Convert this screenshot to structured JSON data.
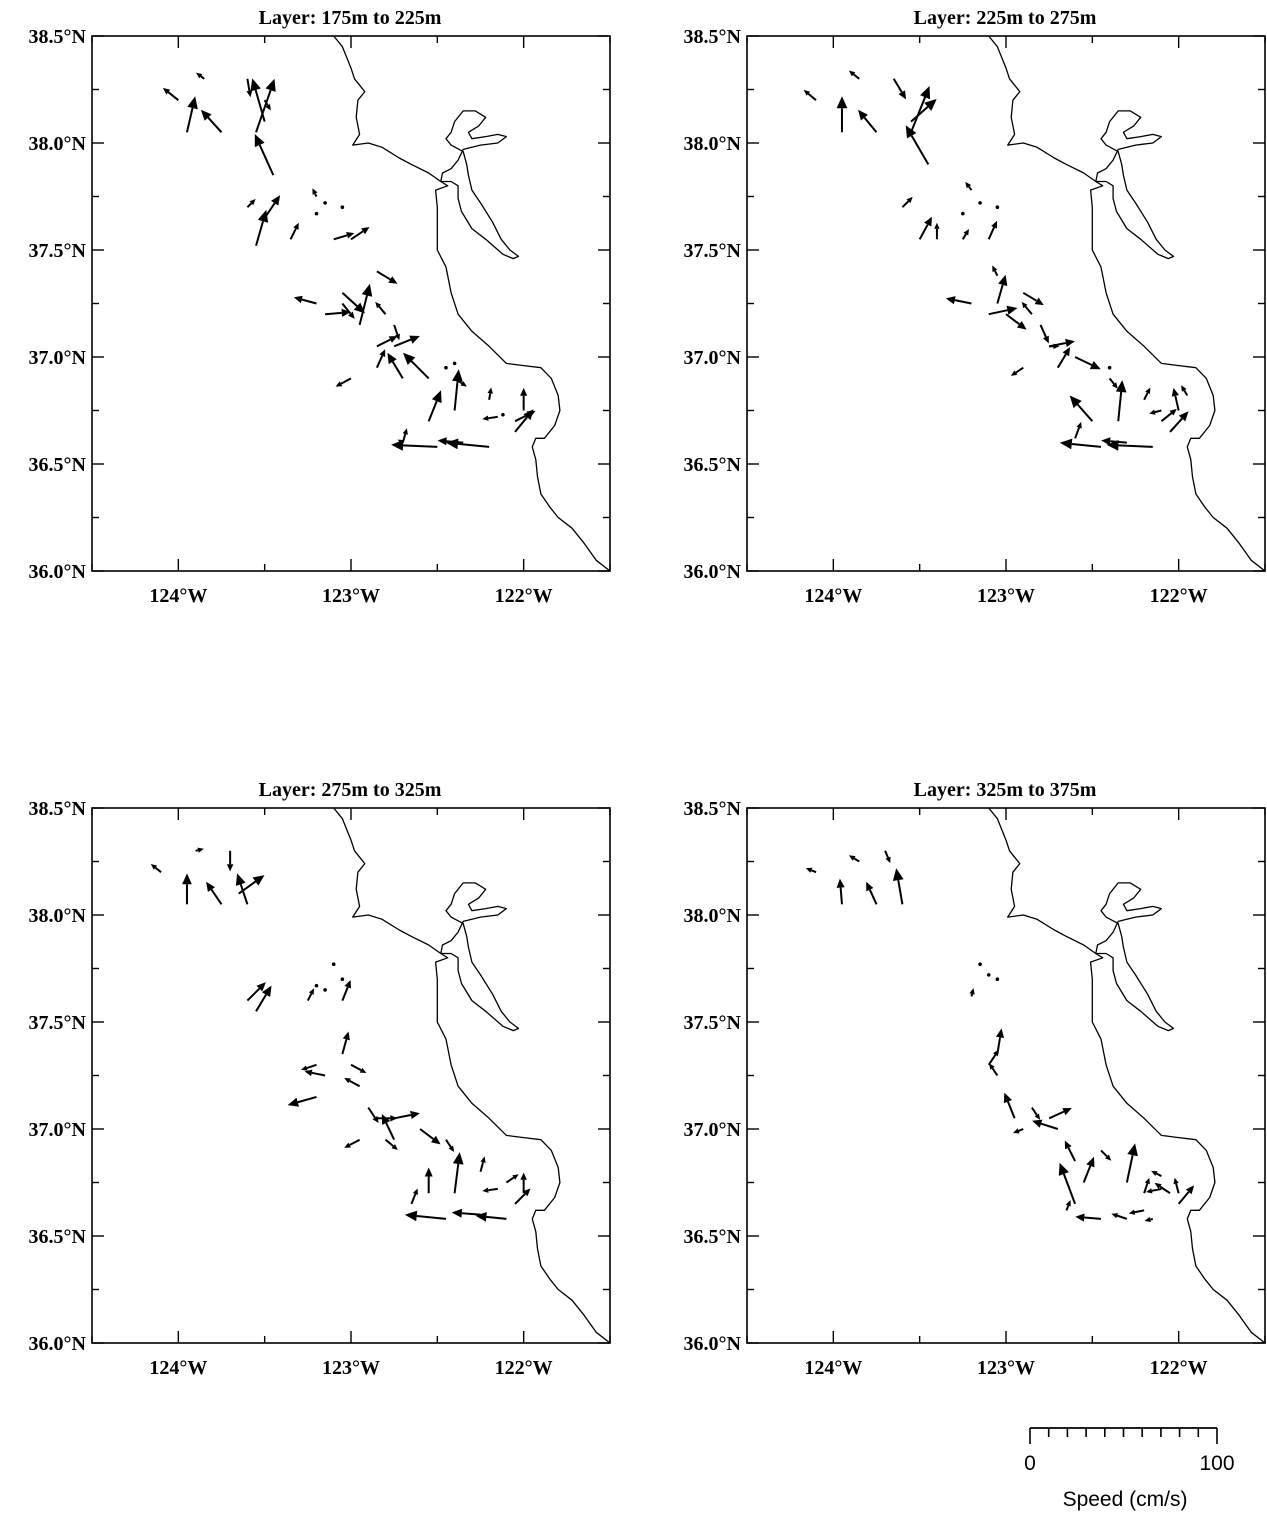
{
  "figure": {
    "panels": [
      {
        "title": "Layer:  175m to 225m"
      },
      {
        "title": "Layer:  225m to 275m"
      },
      {
        "title": "Layer:  275m to 325m"
      },
      {
        "title": "Layer:  325m to 375m"
      }
    ],
    "lat_labels": [
      "36.0°N",
      "36.5°N",
      "37.0°N",
      "37.5°N",
      "38.0°N",
      "38.5°N"
    ],
    "lon_labels": [
      "124°W",
      "123°W",
      "122°W"
    ],
    "scale": {
      "min_label": "0",
      "max_label": "100",
      "title": "Speed (cm/s)"
    }
  },
  "chart_data": [
    {
      "type": "vector-field map",
      "title": "Layer:  175m to 225m",
      "x_range_lon": [
        -124.5,
        -121.5
      ],
      "y_range_lat": [
        36.0,
        38.5
      ],
      "speed_scale_cm_s": 100,
      "vectors": [
        [
          -124.0,
          38.2,
          -15,
          12
        ],
        [
          -123.95,
          38.05,
          8,
          35
        ],
        [
          -123.85,
          38.3,
          -8,
          6
        ],
        [
          -123.75,
          38.05,
          -20,
          22
        ],
        [
          -123.6,
          38.3,
          3,
          -18
        ],
        [
          -123.5,
          38.1,
          -12,
          42
        ],
        [
          -123.45,
          37.85,
          -18,
          40
        ],
        [
          -123.55,
          38.05,
          18,
          52
        ],
        [
          -123.5,
          38.2,
          6,
          -10
        ],
        [
          -123.5,
          37.65,
          15,
          22
        ],
        [
          -123.6,
          37.7,
          8,
          8
        ],
        [
          -123.55,
          37.52,
          10,
          35
        ],
        [
          -123.35,
          37.55,
          8,
          16
        ],
        [
          -123.2,
          37.75,
          -4,
          8
        ],
        [
          -123.1,
          37.55,
          20,
          6
        ],
        [
          -123.0,
          37.55,
          18,
          12
        ],
        [
          -123.2,
          37.25,
          -22,
          6
        ],
        [
          -123.05,
          37.25,
          12,
          -15
        ],
        [
          -123.05,
          37.3,
          22,
          -20
        ],
        [
          -122.95,
          37.15,
          10,
          40
        ],
        [
          -122.85,
          37.4,
          20,
          -12
        ],
        [
          -122.8,
          37.2,
          -10,
          12
        ],
        [
          -122.75,
          37.15,
          5,
          -15
        ],
        [
          -123.15,
          37.2,
          25,
          2
        ],
        [
          -123.0,
          36.9,
          -15,
          -8
        ],
        [
          -122.85,
          36.95,
          8,
          18
        ],
        [
          -122.7,
          36.9,
          -15,
          25
        ],
        [
          -122.85,
          37.05,
          20,
          10
        ],
        [
          -122.75,
          37.05,
          25,
          10
        ],
        [
          -122.55,
          36.9,
          -25,
          25
        ],
        [
          -122.4,
          36.9,
          12,
          -8
        ],
        [
          -122.4,
          36.75,
          4,
          40
        ],
        [
          -122.55,
          36.7,
          12,
          30
        ],
        [
          -122.2,
          36.8,
          2,
          12
        ],
        [
          -122.05,
          36.65,
          18,
          22
        ],
        [
          -122.0,
          36.75,
          0,
          22
        ],
        [
          -122.05,
          36.7,
          20,
          10
        ],
        [
          -122.15,
          36.72,
          -15,
          -2
        ],
        [
          -122.7,
          36.6,
          4,
          14
        ],
        [
          -122.5,
          36.58,
          -45,
          2
        ],
        [
          -122.35,
          36.6,
          -25,
          2
        ],
        [
          -122.2,
          36.58,
          -42,
          4
        ],
        [
          -122.7,
          36.6,
          -5,
          3
        ]
      ],
      "dots": [
        [
          -123.2,
          37.67
        ],
        [
          -123.15,
          37.72
        ],
        [
          -123.05,
          37.7
        ],
        [
          -122.4,
          36.97
        ],
        [
          -122.45,
          36.95
        ],
        [
          -122.12,
          36.73
        ]
      ]
    },
    {
      "type": "vector-field map",
      "title": "Layer:  225m to 275m",
      "x_range_lon": [
        -124.5,
        -121.5
      ],
      "y_range_lat": [
        36.0,
        38.5
      ],
      "speed_scale_cm_s": 100,
      "vectors": [
        [
          -124.1,
          38.2,
          -12,
          10
        ],
        [
          -123.95,
          38.05,
          0,
          35
        ],
        [
          -123.85,
          38.3,
          -10,
          8
        ],
        [
          -123.75,
          38.05,
          -18,
          22
        ],
        [
          -123.65,
          38.3,
          12,
          -20
        ],
        [
          -123.55,
          38.1,
          25,
          22
        ],
        [
          -123.45,
          37.9,
          -22,
          38
        ],
        [
          -123.55,
          38.05,
          18,
          45
        ],
        [
          -123.5,
          37.55,
          12,
          22
        ],
        [
          -123.4,
          37.55,
          0,
          16
        ],
        [
          -123.6,
          37.7,
          10,
          10
        ],
        [
          -123.25,
          37.55,
          6,
          10
        ],
        [
          -123.1,
          37.55,
          8,
          18
        ],
        [
          -123.2,
          37.78,
          -6,
          8
        ],
        [
          -123.05,
          37.38,
          -5,
          10
        ],
        [
          -123.2,
          37.25,
          -25,
          5
        ],
        [
          -123.05,
          37.25,
          8,
          28
        ],
        [
          -122.9,
          37.3,
          20,
          -12
        ],
        [
          -123.1,
          37.2,
          28,
          6
        ],
        [
          -123.0,
          37.2,
          20,
          -15
        ],
        [
          -122.85,
          37.2,
          -10,
          12
        ],
        [
          -122.8,
          37.15,
          8,
          -18
        ],
        [
          -122.75,
          37.05,
          10,
          0
        ],
        [
          -122.9,
          36.95,
          -12,
          -8
        ],
        [
          -122.7,
          36.95,
          12,
          20
        ],
        [
          -122.6,
          37.0,
          25,
          -12
        ],
        [
          -122.75,
          37.05,
          25,
          5
        ],
        [
          -122.5,
          36.7,
          -22,
          25
        ],
        [
          -122.35,
          36.7,
          4,
          40
        ],
        [
          -122.4,
          36.9,
          8,
          -10
        ],
        [
          -122.2,
          36.8,
          6,
          12
        ],
        [
          -122.1,
          36.7,
          15,
          12
        ],
        [
          -122.0,
          36.75,
          -5,
          22
        ],
        [
          -122.05,
          36.65,
          18,
          20
        ],
        [
          -121.95,
          36.82,
          -6,
          10
        ],
        [
          -122.1,
          36.75,
          -12,
          -3
        ],
        [
          -122.6,
          36.62,
          6,
          16
        ],
        [
          -122.45,
          36.58,
          -40,
          4
        ],
        [
          -122.3,
          36.6,
          -25,
          2
        ],
        [
          -122.15,
          36.58,
          -45,
          2
        ]
      ],
      "dots": [
        [
          -123.25,
          37.67
        ],
        [
          -123.15,
          37.72
        ],
        [
          -123.05,
          37.7
        ],
        [
          -122.4,
          36.95
        ]
      ]
    },
    {
      "type": "vector-field map",
      "title": "Layer:  275m to 325m",
      "x_range_lon": [
        -124.5,
        -121.5
      ],
      "y_range_lat": [
        36.0,
        38.5
      ],
      "speed_scale_cm_s": 100,
      "vectors": [
        [
          -124.1,
          38.2,
          -10,
          8
        ],
        [
          -123.95,
          38.05,
          0,
          30
        ],
        [
          -123.9,
          38.3,
          8,
          2
        ],
        [
          -123.75,
          38.05,
          -15,
          22
        ],
        [
          -123.7,
          38.3,
          0,
          -20
        ],
        [
          -123.6,
          38.05,
          -10,
          30
        ],
        [
          -123.65,
          38.1,
          25,
          18
        ],
        [
          -123.55,
          37.55,
          15,
          25
        ],
        [
          -123.6,
          37.6,
          18,
          18
        ],
        [
          -123.25,
          37.6,
          6,
          12
        ],
        [
          -123.05,
          37.6,
          8,
          20
        ],
        [
          -123.05,
          37.35,
          6,
          22
        ],
        [
          -123.2,
          37.3,
          -15,
          -5
        ],
        [
          -123.15,
          37.25,
          -20,
          4
        ],
        [
          -123.2,
          37.15,
          -28,
          -8
        ],
        [
          -123.0,
          37.3,
          15,
          -8
        ],
        [
          -122.95,
          37.2,
          -15,
          8
        ],
        [
          -122.9,
          37.1,
          10,
          -15
        ],
        [
          -122.85,
          37.05,
          20,
          0
        ],
        [
          -122.75,
          37.05,
          25,
          5
        ],
        [
          -122.75,
          36.95,
          -12,
          25
        ],
        [
          -122.6,
          37.0,
          20,
          -15
        ],
        [
          -122.95,
          36.95,
          -15,
          -8
        ],
        [
          -122.8,
          36.95,
          12,
          -10
        ],
        [
          -122.55,
          36.7,
          0,
          25
        ],
        [
          -122.4,
          36.7,
          5,
          40
        ],
        [
          -122.45,
          36.95,
          8,
          -12
        ],
        [
          -122.25,
          36.8,
          4,
          15
        ],
        [
          -122.1,
          36.75,
          12,
          8
        ],
        [
          -122.0,
          36.7,
          0,
          20
        ],
        [
          -122.15,
          36.72,
          -15,
          -2
        ],
        [
          -122.05,
          36.65,
          15,
          15
        ],
        [
          -122.65,
          36.65,
          6,
          15
        ],
        [
          -122.45,
          36.58,
          -40,
          4
        ],
        [
          -122.25,
          36.6,
          -28,
          2
        ],
        [
          -122.1,
          36.58,
          -30,
          3
        ]
      ],
      "dots": [
        [
          -123.2,
          37.67
        ],
        [
          -123.15,
          37.65
        ],
        [
          -123.05,
          37.7
        ],
        [
          -123.1,
          37.77
        ]
      ]
    },
    {
      "type": "vector-field map",
      "title": "Layer:  325m to 375m",
      "x_range_lon": [
        -124.5,
        -121.5
      ],
      "y_range_lat": [
        36.0,
        38.5
      ],
      "speed_scale_cm_s": 100,
      "vectors": [
        [
          -124.1,
          38.2,
          -10,
          4
        ],
        [
          -123.95,
          38.05,
          -2,
          25
        ],
        [
          -123.85,
          38.25,
          -10,
          6
        ],
        [
          -123.75,
          38.05,
          -10,
          22
        ],
        [
          -123.7,
          38.3,
          5,
          -12
        ],
        [
          -123.6,
          38.05,
          -6,
          35
        ],
        [
          -123.2,
          37.62,
          2,
          8
        ],
        [
          -123.1,
          37.3,
          10,
          15
        ],
        [
          -123.05,
          37.35,
          4,
          25
        ],
        [
          -123.05,
          37.25,
          -8,
          12
        ],
        [
          -122.95,
          37.05,
          -10,
          25
        ],
        [
          -122.85,
          37.1,
          8,
          -12
        ],
        [
          -122.7,
          37.0,
          -25,
          8
        ],
        [
          -122.75,
          37.05,
          22,
          10
        ],
        [
          -122.9,
          37.0,
          -10,
          -4
        ],
        [
          -122.6,
          36.85,
          -10,
          20
        ],
        [
          -122.55,
          36.75,
          10,
          25
        ],
        [
          -122.6,
          36.65,
          -15,
          40
        ],
        [
          -122.45,
          36.9,
          10,
          -10
        ],
        [
          -122.3,
          36.75,
          8,
          38
        ],
        [
          -122.2,
          36.7,
          5,
          15
        ],
        [
          -122.05,
          36.7,
          -15,
          10
        ],
        [
          -122.0,
          36.65,
          15,
          18
        ],
        [
          -122.1,
          36.72,
          -15,
          -3
        ],
        [
          -122.2,
          36.62,
          -15,
          -3
        ],
        [
          -122.65,
          36.62,
          4,
          10
        ],
        [
          -122.45,
          36.58,
          -25,
          2
        ],
        [
          -122.3,
          36.58,
          -15,
          5
        ],
        [
          -122.0,
          36.7,
          -4,
          15
        ],
        [
          -122.1,
          36.78,
          -10,
          5
        ],
        [
          -122.15,
          36.58,
          -8,
          -2
        ]
      ],
      "dots": [
        [
          -123.15,
          37.77
        ],
        [
          -123.1,
          37.72
        ],
        [
          -123.05,
          37.7
        ]
      ]
    }
  ]
}
